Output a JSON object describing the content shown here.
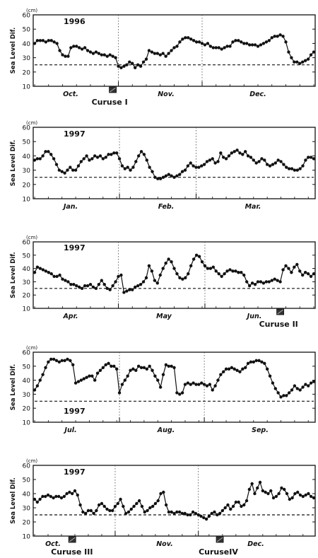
{
  "figure": {
    "unit": "(cm)",
    "ylabel": "Sea Level Dif.",
    "yticks": [
      "10",
      "20",
      "30",
      "40",
      "50",
      "60"
    ]
  },
  "chart_data": [
    {
      "type": "line",
      "year_label": "1996",
      "ylim": [
        10,
        60
      ],
      "reference_level": 25,
      "months": [
        "Oct.",
        "Nov.",
        "Dec."
      ],
      "month_boundaries_index": [
        30,
        60
      ],
      "cruises": [
        {
          "label": "Curuse I",
          "index": 28
        }
      ],
      "series": [
        {
          "values": [
            40,
            42,
            42,
            42,
            41,
            42,
            42,
            41,
            40,
            35,
            32,
            31,
            31,
            37,
            38,
            38,
            37,
            36,
            37,
            35,
            34,
            33,
            34,
            33,
            32,
            32,
            31,
            32,
            31,
            30,
            24,
            23,
            24,
            25,
            27,
            26,
            23,
            25,
            24,
            27,
            29,
            35,
            34,
            33,
            33,
            32,
            33,
            31,
            33,
            35,
            37,
            38,
            41,
            43,
            44,
            44,
            43,
            42,
            41,
            41,
            40,
            39,
            40,
            38,
            37,
            37,
            37,
            36,
            37,
            38,
            38,
            41,
            42,
            42,
            41,
            40,
            40,
            39,
            39,
            39,
            38,
            39,
            40,
            41,
            42,
            44,
            45,
            45,
            46,
            45,
            41,
            34,
            30,
            27,
            27,
            26,
            27,
            28,
            29,
            32,
            34
          ]
        }
      ]
    },
    {
      "type": "line",
      "year_label": "1997",
      "ylim": [
        10,
        60
      ],
      "reference_level": 25,
      "months": [
        "Jan.",
        "Feb.",
        "Mar."
      ],
      "month_boundaries_index": [
        31,
        59
      ],
      "cruises": [],
      "series": [
        {
          "values": [
            37,
            38,
            38,
            40,
            43,
            43,
            41,
            38,
            34,
            30,
            29,
            28,
            30,
            32,
            30,
            30,
            33,
            36,
            38,
            40,
            37,
            38,
            40,
            39,
            40,
            38,
            39,
            41,
            41,
            42,
            42,
            38,
            33,
            31,
            32,
            30,
            32,
            36,
            40,
            43,
            41,
            37,
            32,
            29,
            25,
            24,
            24,
            25,
            26,
            27,
            26,
            25,
            26,
            27,
            29,
            30,
            33,
            35,
            33,
            32,
            32,
            33,
            34,
            36,
            37,
            38,
            35,
            36,
            42,
            39,
            38,
            40,
            42,
            43,
            44,
            42,
            41,
            43,
            40,
            39,
            37,
            35,
            36,
            38,
            37,
            34,
            33,
            34,
            35,
            37,
            36,
            34,
            32,
            31,
            31,
            30,
            30,
            31,
            33,
            37,
            39,
            39,
            38
          ]
        }
      ]
    },
    {
      "type": "line",
      "year_label": "1997",
      "ylim": [
        10,
        60
      ],
      "reference_level": 25,
      "months": [
        "Apr.",
        "May",
        "Jun."
      ],
      "month_boundaries_index": [
        30,
        61
      ],
      "cruises": [
        {
          "label": "Curuse II",
          "index": 88
        }
      ],
      "series": [
        {
          "values": [
            37,
            41,
            40,
            39,
            38,
            37,
            36,
            34,
            34,
            35,
            32,
            31,
            30,
            28,
            28,
            27,
            26,
            25,
            27,
            27,
            28,
            26,
            25,
            28,
            31,
            28,
            25,
            24,
            27,
            30,
            34,
            35,
            22,
            23,
            24,
            24,
            26,
            27,
            28,
            30,
            33,
            42,
            38,
            31,
            29,
            35,
            40,
            44,
            47,
            45,
            40,
            36,
            33,
            32,
            33,
            36,
            42,
            47,
            50,
            49,
            45,
            42,
            40,
            40,
            41,
            38,
            36,
            34,
            36,
            38,
            39,
            38,
            38,
            37,
            37,
            35,
            30,
            27,
            29,
            28,
            30,
            30,
            29,
            30,
            30,
            31,
            32,
            31,
            30,
            39,
            42,
            40,
            37,
            41,
            43,
            38,
            35,
            37,
            36,
            34,
            36
          ]
        }
      ]
    },
    {
      "type": "line",
      "year_label": "1997",
      "ylim": [
        10,
        60
      ],
      "reference_level": 25,
      "months": [
        "Jul.",
        "Aug.",
        "Sep."
      ],
      "month_boundaries_index": [
        31,
        62
      ],
      "cruises": [],
      "series": [
        {
          "values": [
            33,
            36,
            40,
            44,
            49,
            53,
            55,
            55,
            54,
            53,
            54,
            54,
            55,
            54,
            51,
            38,
            39,
            40,
            41,
            42,
            43,
            43,
            40,
            45,
            47,
            49,
            51,
            52,
            50,
            50,
            48,
            31,
            37,
            40,
            43,
            47,
            48,
            47,
            50,
            49,
            49,
            48,
            50,
            47,
            43,
            40,
            35,
            44,
            51,
            50,
            50,
            49,
            31,
            30,
            31,
            37,
            38,
            37,
            38,
            37,
            37,
            38,
            37,
            36,
            37,
            33,
            36,
            40,
            44,
            46,
            48,
            48,
            49,
            48,
            47,
            46,
            48,
            49,
            52,
            53,
            53,
            54,
            54,
            53,
            52,
            48,
            43,
            38,
            34,
            31,
            28,
            29,
            29,
            31,
            33,
            36,
            34,
            33,
            35,
            37,
            36,
            38,
            39
          ]
        }
      ]
    },
    {
      "type": "line",
      "year_label": "1997",
      "ylim": [
        10,
        60
      ],
      "reference_level": 25,
      "months": [
        "Oct.",
        "Nov.",
        "Dec."
      ],
      "month_boundaries_index": [
        30,
        61
      ],
      "cruises": [
        {
          "label": "Curuse III",
          "index": 14
        },
        {
          "label": "CuruseIV",
          "index": 69
        }
      ],
      "series": [
        {
          "values": [
            36,
            34,
            36,
            38,
            38,
            39,
            38,
            37,
            38,
            38,
            37,
            38,
            40,
            41,
            40,
            42,
            39,
            32,
            27,
            26,
            28,
            28,
            26,
            28,
            32,
            33,
            31,
            29,
            28,
            28,
            31,
            33,
            36,
            31,
            26,
            27,
            29,
            31,
            33,
            35,
            31,
            27,
            28,
            30,
            31,
            33,
            35,
            40,
            41,
            32,
            27,
            27,
            26,
            27,
            27,
            26,
            26,
            25,
            25,
            27,
            26,
            25,
            24,
            23,
            22,
            24,
            26,
            27,
            25,
            26,
            28,
            30,
            32,
            29,
            31,
            34,
            34,
            31,
            32,
            35,
            43,
            47,
            40,
            44,
            48,
            42,
            41,
            40,
            42,
            37,
            38,
            40,
            44,
            43,
            40,
            36,
            37,
            40,
            41,
            39,
            38,
            39,
            40,
            38,
            37
          ]
        }
      ]
    }
  ]
}
